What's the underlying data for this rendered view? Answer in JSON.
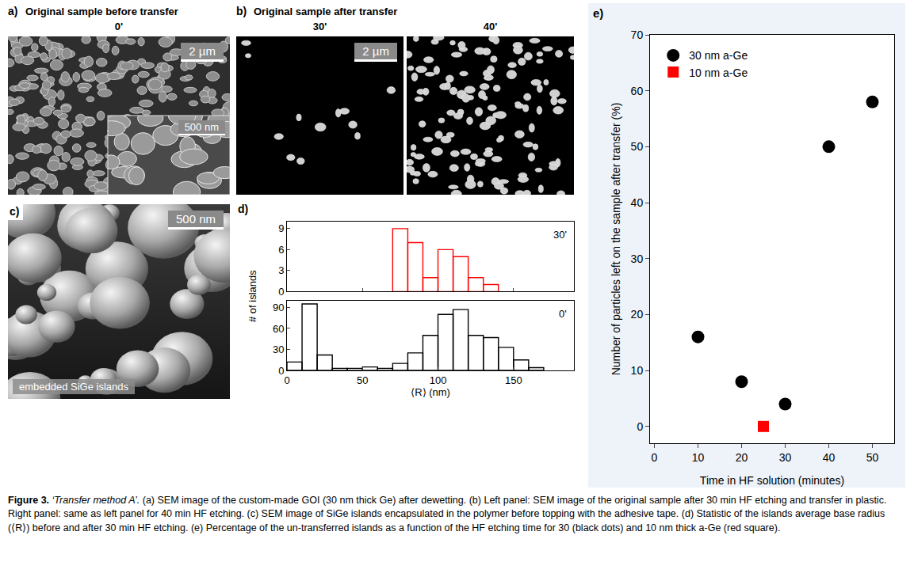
{
  "caption": {
    "label": "Figure 3.",
    "title": "‘Transfer method A’.",
    "text": "(a) SEM image of the custom-made GOI (30 nm thick Ge) after dewetting. (b) Left panel: SEM image of the original sample after 30 min HF etching and transfer in plastic. Right panel: same as left panel for 40 min HF etching. (c) SEM image of SiGe islands encapsulated in the polymer before topping with the adhesive tape. (d) Statistic of the islands average base radius (⟨R⟩) before and after 30 min HF etching. (e) Percentage of the un-transferred islands as a function of the HF etching time for 30 (black dots) and 10 nm thick a-Ge (red square)."
  },
  "images": [
    {
      "label": "a)",
      "title": "Original sample before transfer",
      "frames": [
        {
          "label": "0'",
          "scale_bar": "2 µm",
          "inset_scale_bar": "500 nm"
        }
      ]
    },
    {
      "label": "b)",
      "title": "Original sample after transfer",
      "frames": [
        {
          "label": "30'",
          "scale_bar": "2 µm"
        },
        {
          "label": "40'"
        }
      ]
    },
    {
      "label": "c)",
      "frames": [
        {
          "scale_bar": "500 nm",
          "caption": "embedded SiGe islands"
        }
      ]
    }
  ],
  "chart_data": [
    {
      "type": "histogram",
      "label": "d)",
      "xlabel": "⟨R⟩ (nm)",
      "ylabel": "# of islands",
      "xlim": [
        0,
        190
      ],
      "xticks": [
        0,
        50,
        100,
        150
      ],
      "series": [
        {
          "name": "30'",
          "color": "#ff0000",
          "bins": [
            70,
            80,
            90,
            100,
            110,
            120,
            130,
            140
          ],
          "counts": [
            9,
            7,
            2,
            6,
            5,
            2,
            1
          ],
          "ylim": [
            0,
            10
          ],
          "yticks": [
            0,
            3,
            6,
            9
          ]
        },
        {
          "name": "0'",
          "color": "#000000",
          "bins": [
            0,
            10,
            20,
            30,
            40,
            50,
            60,
            70,
            80,
            90,
            100,
            110,
            120,
            130,
            140,
            150,
            160,
            170
          ],
          "counts": [
            12,
            95,
            22,
            3,
            3,
            5,
            3,
            10,
            25,
            50,
            80,
            87,
            50,
            47,
            33,
            15,
            4
          ],
          "ylim": [
            0,
            100
          ],
          "yticks": [
            0,
            30,
            60,
            90
          ]
        }
      ]
    },
    {
      "type": "scatter",
      "label": "e)",
      "xlabel": "Time in HF solution (minutes)",
      "ylabel": "Number of particles left on the sample after transfer (%)",
      "xlim": [
        -1,
        55
      ],
      "xticks": [
        0,
        10,
        20,
        30,
        40,
        50
      ],
      "ylim": [
        -3,
        70
      ],
      "yticks": [
        0,
        10,
        20,
        30,
        40,
        50,
        60,
        70
      ],
      "legend": "upper left",
      "series": [
        {
          "name": "30 nm a-Ge",
          "color": "#000000",
          "marker": "circle",
          "x": [
            10,
            20,
            30,
            40,
            50
          ],
          "values": [
            16,
            8,
            4,
            50,
            58
          ]
        },
        {
          "name": "10 nm a-Ge",
          "color": "#ff0000",
          "marker": "square",
          "x": [
            25
          ],
          "values": [
            0
          ]
        }
      ]
    }
  ]
}
